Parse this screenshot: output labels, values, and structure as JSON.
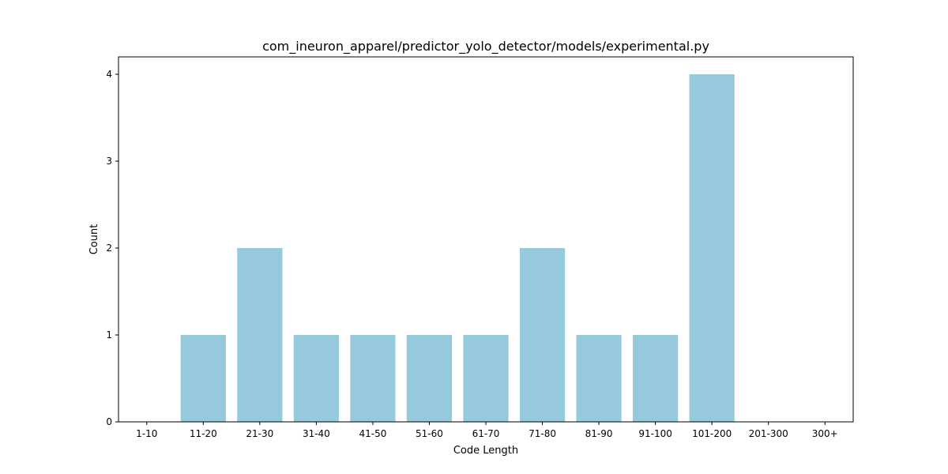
{
  "chart_data": {
    "type": "bar",
    "title": "com_ineuron_apparel/predictor_yolo_detector/models/experimental.py",
    "xlabel": "Code Length",
    "ylabel": "Count",
    "categories": [
      "1-10",
      "11-20",
      "21-30",
      "31-40",
      "41-50",
      "51-60",
      "61-70",
      "71-80",
      "81-90",
      "91-100",
      "101-200",
      "201-300",
      "300+"
    ],
    "values": [
      0,
      1,
      2,
      1,
      1,
      1,
      1,
      2,
      1,
      1,
      4,
      0,
      0
    ],
    "ylim": [
      0,
      4.2
    ],
    "yticks": [
      0,
      1,
      2,
      3,
      4
    ],
    "bar_color": "#96c9dc",
    "grid": false
  }
}
